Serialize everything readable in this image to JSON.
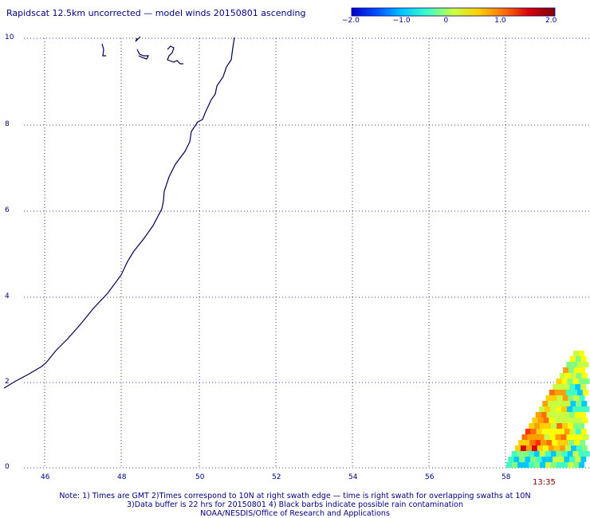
{
  "title": "Rapidscat 12.5km uncorrected — model winds 20150801 ascending",
  "colorbar": {
    "labels": [
      "−2.0",
      "−1.0",
      "0",
      "1.0",
      "2.0"
    ],
    "colors": [
      "#0000c8",
      "#0050ff",
      "#00c8ff",
      "#40ffc0",
      "#c8ff40",
      "#ffd000",
      "#ff7000",
      "#d80000",
      "#800000"
    ]
  },
  "map": {
    "x_ticks": [
      "46",
      "48",
      "50",
      "52",
      "54",
      "56",
      "58"
    ],
    "y_ticks": [
      "0",
      "2",
      "4",
      "6",
      "8",
      "10"
    ],
    "swath_time": "13:35"
  },
  "notes": {
    "line1": "Note: 1) Times are GMT 2)Times correspond to 10N at right swath edge — time is right swath for overlapping swaths at 10N",
    "line2": "3)Data buffer is 22 hrs for 20150801 4) Black barbs indicate possible rain contamination",
    "line3": "NOAA/NESDIS/Office of Research and Applications"
  }
}
